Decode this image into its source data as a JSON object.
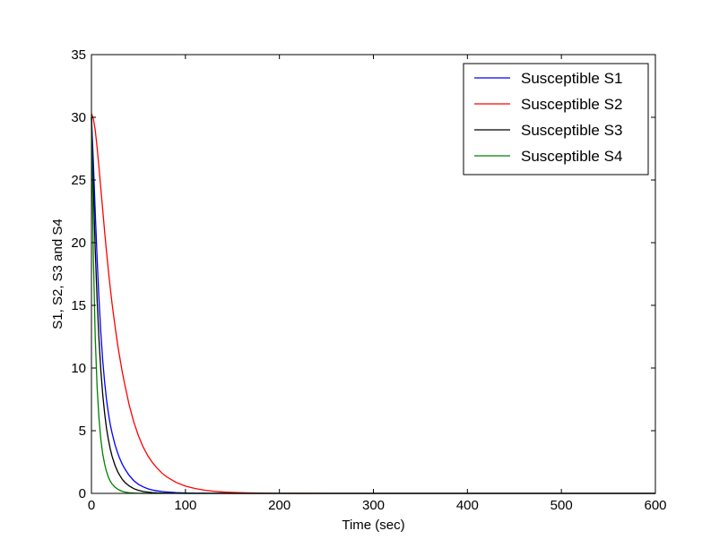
{
  "chart_data": {
    "type": "line",
    "xlabel": "Time (sec)",
    "ylabel": "S1, S2, S3 and S4",
    "xlim": [
      0,
      600
    ],
    "ylim": [
      0,
      35
    ],
    "xticks": [
      "0",
      "100",
      "200",
      "300",
      "400",
      "500",
      "600"
    ],
    "yticks": [
      "0",
      "5",
      "10",
      "15",
      "20",
      "25",
      "30",
      "35"
    ],
    "grid": false,
    "legend_position": "top-right",
    "x": [
      0,
      2,
      4,
      6,
      8,
      10,
      12,
      14,
      16,
      18,
      20,
      22,
      25,
      28,
      30,
      33,
      36,
      40,
      45,
      50,
      55,
      60,
      65,
      70,
      75,
      80,
      90,
      100,
      110,
      120,
      130,
      140,
      150,
      160,
      170,
      180,
      190,
      200,
      220,
      250,
      300,
      350,
      400,
      450,
      500,
      550,
      600
    ],
    "series": [
      {
        "name": "Susceptible S1",
        "color": "#0000ff",
        "values": [
          30,
          26.5,
          22.5,
          18.8,
          15.5,
          12.8,
          10.6,
          8.9,
          7.5,
          6.4,
          5.5,
          4.8,
          3.9,
          3.2,
          2.8,
          2.3,
          1.9,
          1.45,
          1.02,
          0.72,
          0.52,
          0.37,
          0.27,
          0.2,
          0.15,
          0.11,
          0.06,
          0.035,
          0.02,
          0.012,
          0.007,
          0.004,
          0.003,
          0.002,
          0.001,
          0.001,
          0.0,
          0.0,
          0.0,
          0.0,
          0.0,
          0.0,
          0.0,
          0.0,
          0.0,
          0.0,
          0.0
        ]
      },
      {
        "name": "Susceptible S2",
        "color": "#ff0000",
        "values": [
          30.3,
          29.9,
          29.0,
          27.6,
          26.0,
          24.3,
          22.6,
          20.9,
          19.3,
          17.8,
          16.4,
          15.1,
          13.4,
          11.8,
          10.9,
          9.6,
          8.5,
          7.1,
          5.7,
          4.6,
          3.7,
          3.0,
          2.45,
          2.0,
          1.62,
          1.32,
          0.88,
          0.58,
          0.39,
          0.26,
          0.17,
          0.11,
          0.075,
          0.05,
          0.033,
          0.022,
          0.015,
          0.01,
          0.004,
          0.001,
          0.0,
          0.0,
          0.0,
          0.0,
          0.0,
          0.0,
          0.0
        ]
      },
      {
        "name": "Susceptible S3",
        "color": "#000000",
        "values": [
          30,
          24.5,
          19.5,
          15.5,
          12.3,
          9.8,
          7.9,
          6.4,
          5.2,
          4.3,
          3.55,
          2.95,
          2.25,
          1.72,
          1.45,
          1.1,
          0.85,
          0.6,
          0.38,
          0.24,
          0.15,
          0.1,
          0.065,
          0.042,
          0.028,
          0.018,
          0.008,
          0.004,
          0.002,
          0.001,
          0.0,
          0.0,
          0.0,
          0.0,
          0.0,
          0.0,
          0.0,
          0.0,
          0.0,
          0.0,
          0.0,
          0.0,
          0.0,
          0.0,
          0.0,
          0.0,
          0.0
        ]
      },
      {
        "name": "Susceptible S4",
        "color": "#008000",
        "values": [
          30,
          19.0,
          12.5,
          8.5,
          6.0,
          4.3,
          3.15,
          2.35,
          1.75,
          1.3,
          0.98,
          0.74,
          0.5,
          0.33,
          0.25,
          0.16,
          0.1,
          0.055,
          0.025,
          0.011,
          0.005,
          0.002,
          0.001,
          0.0,
          0.0,
          0.0,
          0.0,
          0.0,
          0.0,
          0.0,
          0.0,
          0.0,
          0.0,
          0.0,
          0.0,
          0.0,
          0.0,
          0.0,
          0.0,
          0.0,
          0.0,
          0.0,
          0.0,
          0.0,
          0.0,
          0.0,
          0.0
        ]
      }
    ]
  }
}
